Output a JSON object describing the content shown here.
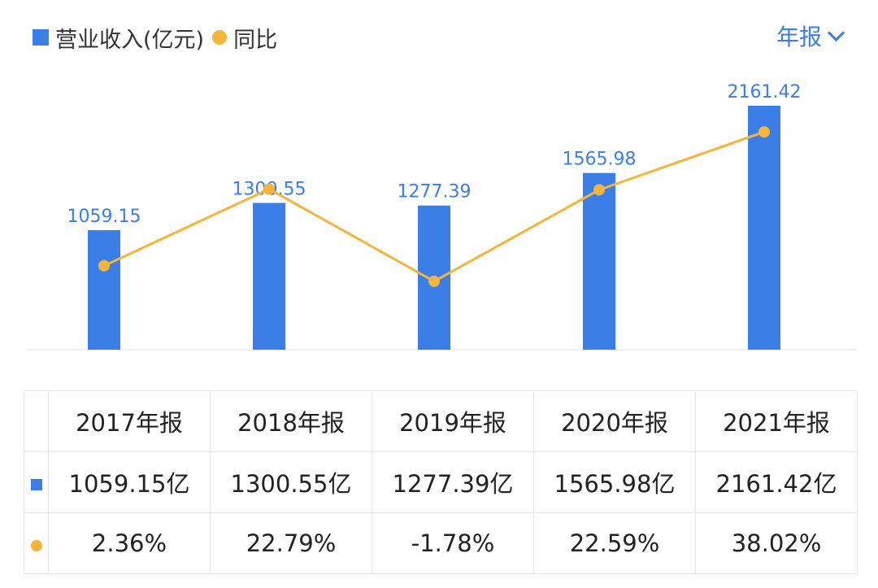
{
  "legend": {
    "revenue": "营业收入(亿元)",
    "yoy": "同比"
  },
  "period_selector": "年报",
  "colors": {
    "bar": "#3b7ee8",
    "line": "#f5b53b",
    "positive": "#d84a4a",
    "negative": "#2fa36b"
  },
  "chart_data": {
    "type": "bar",
    "categories": [
      "2017年报",
      "2018年报",
      "2019年报",
      "2020年报",
      "2021年报"
    ],
    "series": [
      {
        "name": "营业收入(亿元)",
        "type": "bar",
        "values": [
          1059.15,
          1300.55,
          1277.39,
          1565.98,
          2161.42
        ]
      },
      {
        "name": "同比",
        "type": "line",
        "values": [
          2.36,
          22.79,
          -1.78,
          22.59,
          38.02
        ]
      }
    ],
    "data_labels": [
      "1059.15",
      "1300.55",
      "1277.39",
      "1565.98",
      "2161.42"
    ],
    "ylim": [
      0,
      2161.42
    ],
    "grid": false
  },
  "table": {
    "headers": [
      "2017年报",
      "2018年报",
      "2019年报",
      "2020年报",
      "2021年报"
    ],
    "revenue": [
      "1059.15亿",
      "1300.55亿",
      "1277.39亿",
      "1565.98亿",
      "2161.42亿"
    ],
    "yoy": [
      "2.36%",
      "22.79%",
      "-1.78%",
      "22.59%",
      "38.02%"
    ]
  }
}
